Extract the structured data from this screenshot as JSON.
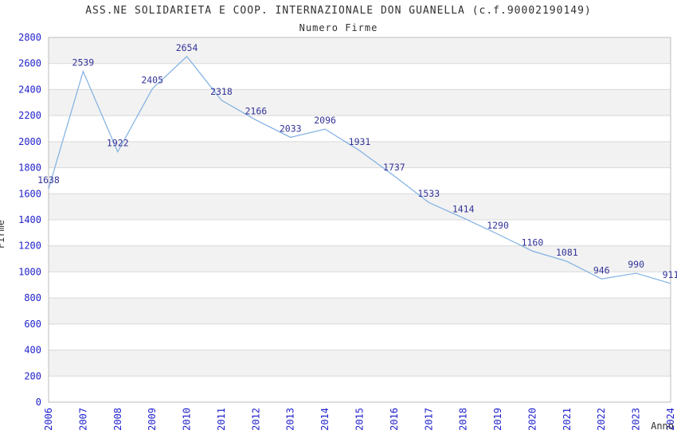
{
  "header": {
    "title": "ASS.NE SOLIDARIETA E COOP. INTERNAZIONALE DON GUANELLA (c.f.90002190149)",
    "subtitle": "Numero Firme"
  },
  "chart_data": {
    "type": "line",
    "title": "ASS.NE SOLIDARIETA E COOP. INTERNAZIONALE DON GUANELLA (c.f.90002190149)",
    "subtitle": "Numero Firme",
    "xlabel": "Anno",
    "ylabel": "Firme",
    "x": [
      2006,
      2007,
      2008,
      2009,
      2010,
      2011,
      2012,
      2013,
      2014,
      2015,
      2016,
      2017,
      2018,
      2019,
      2020,
      2021,
      2022,
      2023,
      2024
    ],
    "series": [
      {
        "name": "Numero Firme",
        "values": [
          1638,
          2539,
          1922,
          2405,
          2654,
          2318,
          2166,
          2033,
          2096,
          1931,
          1737,
          1533,
          1414,
          1290,
          1160,
          1081,
          946,
          990,
          911
        ]
      }
    ],
    "ylim": [
      0,
      2800
    ],
    "ytick_step": 200,
    "grid": "horizontal",
    "banded_background": true,
    "legend": "none",
    "colors": {
      "line": "#7fb0e2",
      "point_label": "#333399",
      "tick_label": "#2222cc",
      "axis_title": "#303030",
      "band": "#f2f2f2",
      "gridline": "#d9d9d9",
      "plot_border": "#bdbdbd",
      "background": "#ffffff"
    }
  }
}
